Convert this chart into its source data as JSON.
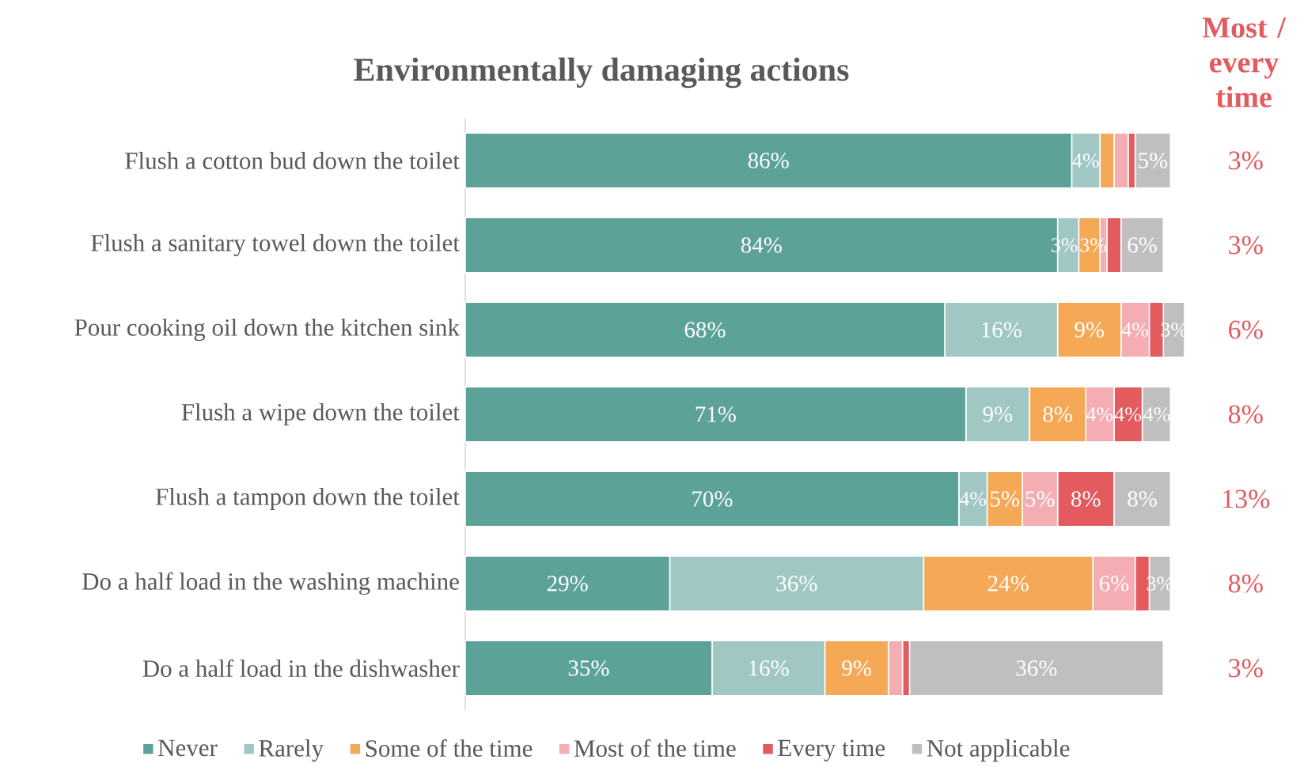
{
  "chart_data": {
    "type": "bar",
    "orientation": "horizontal",
    "stacked": true,
    "title": "Environmentally damaging actions",
    "categories": [
      "Flush a cotton bud down the toilet",
      "Flush a sanitary towel down the toilet",
      "Pour cooking oil down the kitchen sink",
      "Flush a wipe down the toilet",
      "Flush a tampon down the toilet",
      "Do a half load in the washing machine",
      "Do a half load in the dishwasher"
    ],
    "series": [
      {
        "name": "Never",
        "color": "#5da299",
        "values": [
          86,
          84,
          68,
          71,
          70,
          29,
          35
        ],
        "value_labels": [
          "86%",
          "84%",
          "68%",
          "71%",
          "70%",
          "29%",
          "35%"
        ]
      },
      {
        "name": "Rarely",
        "color": "#a0c7c3",
        "values": [
          4,
          3,
          16,
          9,
          4,
          36,
          16
        ],
        "value_labels": [
          "4%",
          "3%",
          "16%",
          "9%",
          "4%",
          "36%",
          "16%"
        ]
      },
      {
        "name": "Some of the time",
        "color": "#f5a957",
        "values": [
          2,
          3,
          9,
          8,
          5,
          24,
          9
        ],
        "value_labels": [
          null,
          "3%",
          "9%",
          "8%",
          "5%",
          "24%",
          "9%"
        ]
      },
      {
        "name": "Most of the time",
        "color": "#f4aeb3",
        "values": [
          2,
          1,
          4,
          4,
          5,
          6,
          2
        ],
        "value_labels": [
          null,
          null,
          "4%",
          "4%",
          "5%",
          "6%",
          null
        ]
      },
      {
        "name": "Every time",
        "color": "#e35a5f",
        "values": [
          1,
          2,
          2,
          4,
          8,
          2,
          1
        ],
        "value_labels": [
          null,
          null,
          null,
          "4%",
          "8%",
          null,
          null
        ]
      },
      {
        "name": "Not applicable",
        "color": "#bfbfbf",
        "values": [
          5,
          6,
          3,
          4,
          8,
          3,
          36
        ],
        "value_labels": [
          "5%",
          "6%",
          "3%",
          "4%",
          "8%",
          "3%",
          "36%"
        ]
      }
    ],
    "annotations": [
      "Most / every time",
      "3%",
      "3%",
      "6%",
      "8%",
      "13%",
      "8%",
      "3%"
    ],
    "legend": "bottom",
    "tick_labels": "y"
  }
}
